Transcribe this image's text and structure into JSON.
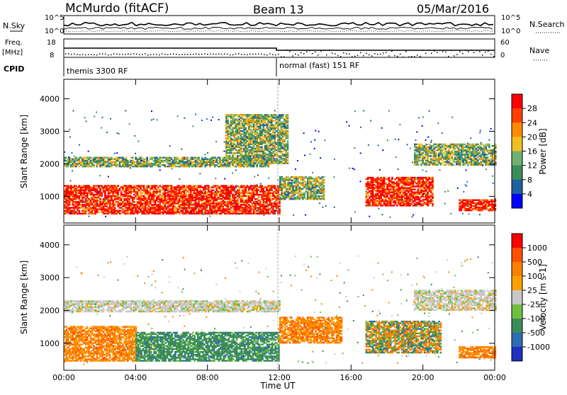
{
  "header": {
    "station": "McMurdo (fitACF)",
    "beam": "Beam 13",
    "date": "05/Mar/2016"
  },
  "top_panel": {
    "left_label_nsky": "N.Sky",
    "left_label_freq": "Freq.",
    "left_label_mhz": "[MHz]",
    "left_label_cpid": "CPID",
    "right_label_nsearch": "N.Search",
    "right_label_nave": "Nave",
    "noise_ticks": [
      "10^5",
      "10^0"
    ],
    "freq_ticks": [
      "18",
      "8"
    ],
    "nave_ticks": [
      "60",
      "0"
    ],
    "cpid_segments": [
      {
        "label": "themis 3300 RF",
        "start_hour": 0
      },
      {
        "label": "normal (fast) 151 RF",
        "start_hour": 12
      }
    ]
  },
  "colors": {
    "power_scale": [
      "#0000ff",
      "#2060a0",
      "#3c8c5a",
      "#70b070",
      "#f0c020",
      "#ff8c00",
      "#ff4000",
      "#ff0000"
    ],
    "velocity_scale": [
      "#2030c0",
      "#2e6cb4",
      "#3c8c5a",
      "#70c040",
      "#c8c8c8",
      "#ffa000",
      "#ff8000",
      "#ff5000",
      "#ff0000"
    ],
    "frame": "#000000",
    "divider": "#aaaaaa"
  },
  "chart_data": [
    {
      "type": "heatmap",
      "title": "Power",
      "xlabel": "",
      "ylabel": "Slant Range [km]",
      "xlim_hours": [
        0,
        24
      ],
      "ylim": [
        180,
        4600
      ],
      "y_ticks": [
        1000,
        2000,
        3000,
        4000
      ],
      "x_ticks": [
        "00:00",
        "04:00",
        "08:00",
        "12:00",
        "16:00",
        "20:00",
        "00:00"
      ],
      "colorbar_label": "Power [dB]",
      "colorbar_ticks": [
        "28",
        "24",
        "20",
        "16",
        "12",
        "8",
        "4"
      ],
      "regions": [
        {
          "t": [
            0,
            12
          ],
          "r": [
            450,
            1350
          ],
          "level": "high",
          "desc": "strong echo band"
        },
        {
          "t": [
            0,
            11.5
          ],
          "r": [
            1900,
            2200
          ],
          "level": "medium"
        },
        {
          "t": [
            9,
            12.5
          ],
          "r": [
            2000,
            3500
          ],
          "level": "medium"
        },
        {
          "t": [
            12,
            14.5
          ],
          "r": [
            900,
            1600
          ],
          "level": "medium"
        },
        {
          "t": [
            16.8,
            20.5
          ],
          "r": [
            700,
            1600
          ],
          "level": "high"
        },
        {
          "t": [
            19.5,
            24
          ],
          "r": [
            1950,
            2600
          ],
          "level": "medium"
        },
        {
          "t": [
            22,
            24
          ],
          "r": [
            550,
            900
          ],
          "level": "high"
        }
      ]
    },
    {
      "type": "heatmap",
      "title": "Velocity",
      "xlabel": "Time UT",
      "ylabel": "Slant Range [km]",
      "xlim_hours": [
        0,
        24
      ],
      "ylim": [
        180,
        4600
      ],
      "y_ticks": [
        1000,
        2000,
        3000,
        4000
      ],
      "x_ticks": [
        "00:00",
        "04:00",
        "08:00",
        "12:00",
        "16:00",
        "20:00",
        "00:00"
      ],
      "colorbar_label": "Velocity [m s-1]",
      "colorbar_ticks": [
        "1000",
        "500",
        "100",
        "25",
        "-25",
        "-100",
        "-500",
        "-1000"
      ],
      "regions": [
        {
          "t": [
            0,
            4
          ],
          "r": [
            450,
            1500
          ],
          "level": "orange"
        },
        {
          "t": [
            4,
            12
          ],
          "r": [
            450,
            1350
          ],
          "level": "green"
        },
        {
          "t": [
            0,
            12
          ],
          "r": [
            1950,
            2300
          ],
          "level": "gray"
        },
        {
          "t": [
            12,
            15.5
          ],
          "r": [
            1000,
            1800
          ],
          "level": "orange"
        },
        {
          "t": [
            16.8,
            21
          ],
          "r": [
            700,
            1650
          ],
          "level": "orange-green"
        },
        {
          "t": [
            19.5,
            24
          ],
          "r": [
            2000,
            2600
          ],
          "level": "gray"
        },
        {
          "t": [
            22,
            24
          ],
          "r": [
            550,
            900
          ],
          "level": "orange"
        }
      ]
    }
  ]
}
